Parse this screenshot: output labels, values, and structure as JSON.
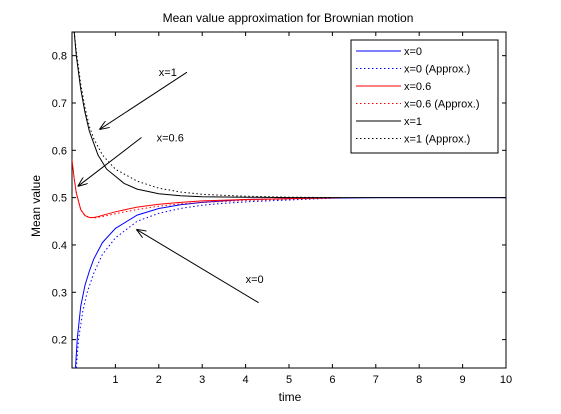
{
  "chart_data": {
    "type": "line",
    "title": "Mean value approximation for Brownian motion",
    "xlabel": "time",
    "ylabel": "Mean value",
    "xlim": [
      0,
      10
    ],
    "ylim": [
      0.14,
      0.85
    ],
    "xticks": [
      1,
      2,
      3,
      4,
      5,
      6,
      7,
      8,
      9,
      10
    ],
    "yticks": [
      0.2,
      0.3,
      0.4,
      0.5,
      0.6,
      0.7,
      0.8
    ],
    "grid": false,
    "legend_position": "top-right",
    "series": [
      {
        "name": "x=0",
        "color": "#0000ff",
        "style": "solid",
        "x": [
          0.08,
          0.12,
          0.2,
          0.3,
          0.4,
          0.5,
          0.7,
          1.0,
          1.5,
          2.0,
          2.5,
          3.0,
          3.5,
          4.0,
          5.0,
          6.0,
          7.0,
          8.0,
          9.0,
          10.0
        ],
        "y": [
          0.14,
          0.2,
          0.27,
          0.315,
          0.345,
          0.37,
          0.405,
          0.435,
          0.463,
          0.477,
          0.485,
          0.49,
          0.493,
          0.496,
          0.498,
          0.499,
          0.5,
          0.5,
          0.5,
          0.5
        ]
      },
      {
        "name": "x=0 (Approx.)",
        "color": "#0000ff",
        "style": "dotted",
        "x": [
          0.1,
          0.15,
          0.25,
          0.35,
          0.5,
          0.7,
          1.0,
          1.5,
          2.0,
          2.5,
          3.0,
          3.5,
          4.0,
          4.5,
          5.0,
          5.5,
          6.0
        ],
        "y": [
          0.14,
          0.2,
          0.26,
          0.3,
          0.34,
          0.38,
          0.415,
          0.45,
          0.467,
          0.477,
          0.484,
          0.488,
          0.491,
          0.493,
          0.495,
          0.497,
          0.499
        ]
      },
      {
        "name": "x=0.6",
        "color": "#ff0000",
        "style": "solid",
        "x": [
          0.0,
          0.05,
          0.1,
          0.2,
          0.3,
          0.4,
          0.5,
          0.6,
          0.8,
          1.0,
          1.5,
          2.0,
          2.5,
          3.0,
          4.0,
          5.0,
          6.2
        ],
        "y": [
          0.58,
          0.54,
          0.51,
          0.475,
          0.462,
          0.458,
          0.458,
          0.46,
          0.465,
          0.47,
          0.48,
          0.486,
          0.49,
          0.493,
          0.496,
          0.498,
          0.5
        ]
      },
      {
        "name": "x=0.6 (Approx.)",
        "color": "#ff0000",
        "style": "dotted",
        "x": [
          0.0,
          0.05,
          0.1,
          0.2,
          0.3,
          0.4,
          0.5,
          0.7,
          1.0,
          1.5,
          2.0,
          2.5,
          3.0,
          4.0,
          5.0,
          6.0
        ],
        "y": [
          0.58,
          0.54,
          0.51,
          0.475,
          0.462,
          0.458,
          0.457,
          0.46,
          0.466,
          0.475,
          0.482,
          0.487,
          0.49,
          0.494,
          0.497,
          0.499
        ]
      },
      {
        "name": "x=1",
        "color": "#000000",
        "style": "solid",
        "x": [
          0.05,
          0.1,
          0.2,
          0.3,
          0.4,
          0.5,
          0.6,
          0.8,
          1.0,
          1.2,
          1.5,
          2.0,
          2.5,
          3.0,
          4.0,
          5.0,
          6.0,
          7.0,
          8.0,
          9.0,
          10.0
        ],
        "y": [
          0.85,
          0.8,
          0.73,
          0.68,
          0.64,
          0.615,
          0.59,
          0.56,
          0.545,
          0.53,
          0.518,
          0.508,
          0.504,
          0.502,
          0.501,
          0.5,
          0.5,
          0.5,
          0.5,
          0.5,
          0.5
        ]
      },
      {
        "name": "x=1 (Approx.)",
        "color": "#000000",
        "style": "dotted",
        "x": [
          0.05,
          0.1,
          0.2,
          0.3,
          0.4,
          0.5,
          0.7,
          1.0,
          1.5,
          2.0,
          2.5,
          3.0,
          3.5,
          4.0,
          5.0,
          6.0
        ],
        "y": [
          0.85,
          0.81,
          0.74,
          0.69,
          0.65,
          0.625,
          0.59,
          0.56,
          0.535,
          0.52,
          0.512,
          0.507,
          0.505,
          0.503,
          0.501,
          0.5
        ]
      }
    ],
    "annotations": [
      {
        "text": "x=1",
        "label_at": [
          2.0,
          0.765
        ],
        "arrow_from": [
          2.65,
          0.765
        ],
        "arrow_to": [
          0.65,
          0.645
        ]
      },
      {
        "text": "x=0.6",
        "label_at": [
          1.95,
          0.627
        ],
        "arrow_from": [
          1.6,
          0.627
        ],
        "arrow_to": [
          0.15,
          0.525
        ]
      },
      {
        "text": "x=0",
        "label_at": [
          4.0,
          0.328
        ],
        "arrow_from": [
          4.3,
          0.278
        ],
        "arrow_to": [
          1.5,
          0.432
        ]
      }
    ]
  }
}
